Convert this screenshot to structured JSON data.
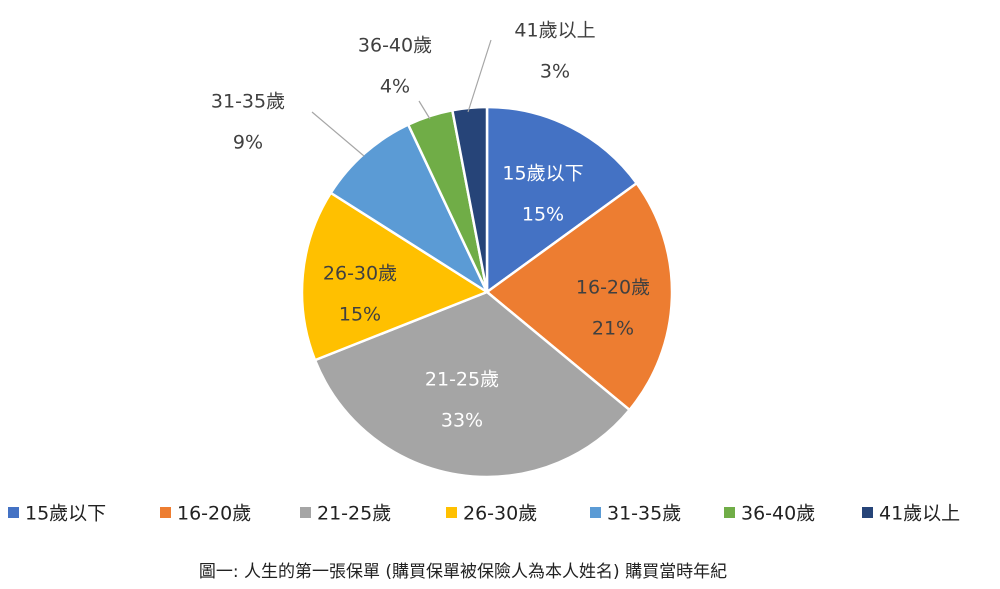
{
  "chart_data": {
    "type": "pie",
    "title": "圖一:  人生的第一張保單 (購買保單被保險人為本人姓名) 購買當時年紀",
    "categories": [
      "15歲以下",
      "16-20歲",
      "21-25歲",
      "26-30歲",
      "31-35歲",
      "36-40歲",
      "41歲以上"
    ],
    "values": [
      15,
      21,
      33,
      15,
      9,
      4,
      3
    ],
    "value_labels": [
      "15%",
      "21%",
      "33%",
      "15%",
      "9%",
      "4%",
      "3%"
    ],
    "colors": [
      "#4472c4",
      "#ed7d31",
      "#a5a5a5",
      "#ffc000",
      "#5b9bd5",
      "#70ad47",
      "#264478"
    ],
    "legend": "bottom"
  }
}
